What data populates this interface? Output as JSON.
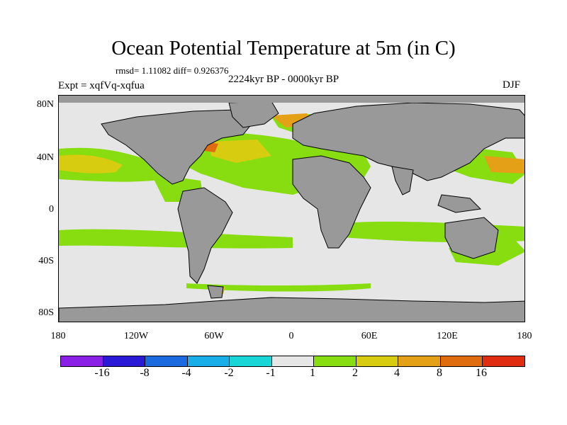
{
  "title": "Ocean Potential Temperature at 5m (in C)",
  "stats": "rmsd= 1.11082 diff= 0.926376",
  "experiment": "Expt = xqfVq-xqfua",
  "period": "2224kyr BP - 0000kyr BP",
  "season": "DJF",
  "lat_labels": [
    "80N",
    "40N",
    "0",
    "40S",
    "80S"
  ],
  "lon_labels": [
    "180",
    "120W",
    "60W",
    "0",
    "60E",
    "120E",
    "180"
  ],
  "colorbar": {
    "labels": [
      "-16",
      "-8",
      "-4",
      "-2",
      "-1",
      "1",
      "2",
      "4",
      "8",
      "16"
    ],
    "colors": [
      "#8a1fe6",
      "#2a1ad6",
      "#1b6ae0",
      "#19aee8",
      "#18d6d6",
      "#e6e6e6",
      "#88dd10",
      "#d8cc10",
      "#e4a017",
      "#e06c10",
      "#e02c10"
    ]
  },
  "map_colors": {
    "ocean_near_zero": "#e6e6e6",
    "land": "#999999",
    "anomaly_1_2": "#88dd10",
    "anomaly_2_4": "#d8cc10",
    "anomaly_4_8": "#e4a017",
    "anomaly_neg": "#18d6d6"
  }
}
